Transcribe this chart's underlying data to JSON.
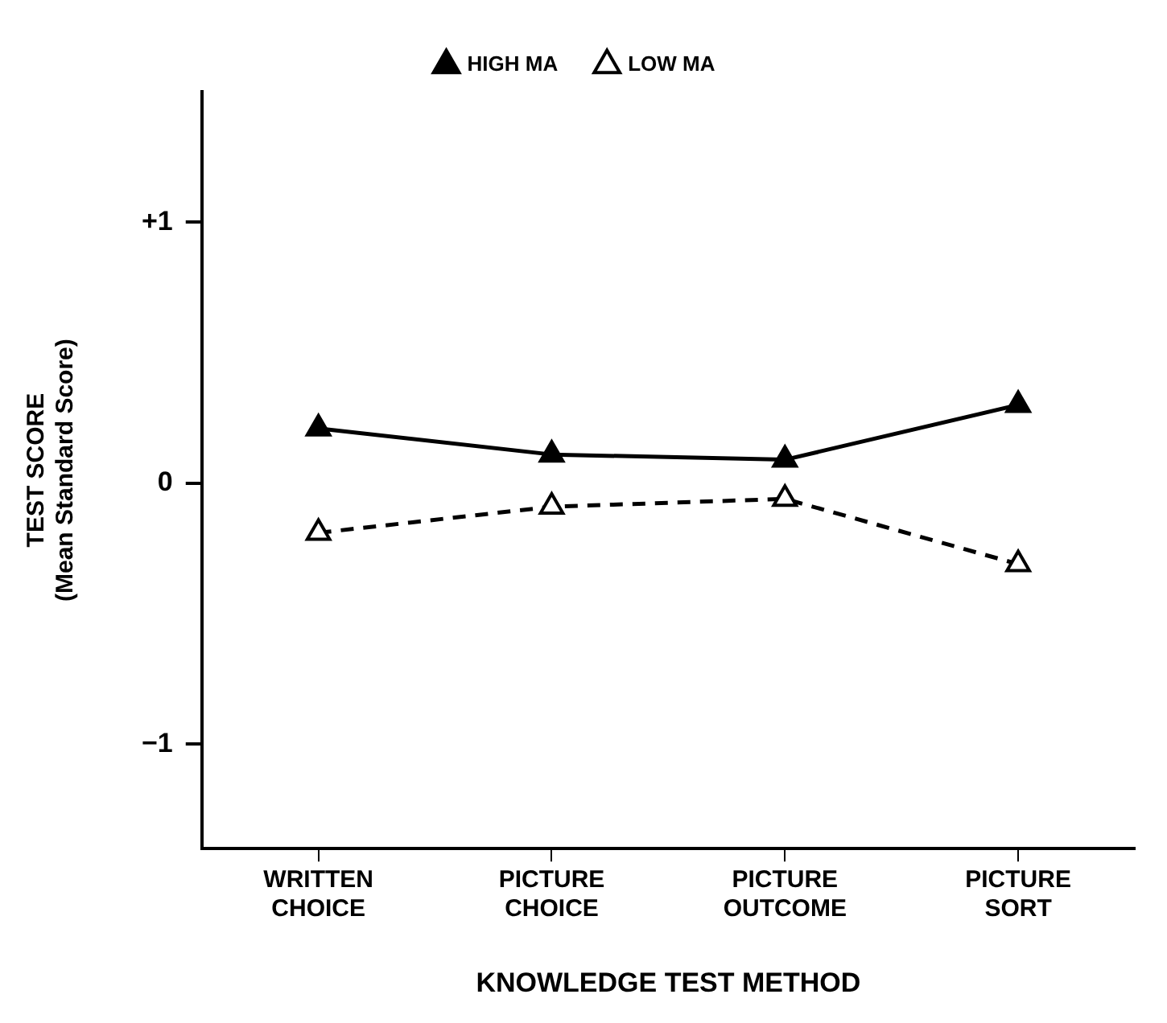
{
  "chart_data": {
    "type": "line",
    "xlabel": "KNOWLEDGE TEST METHOD",
    "ylabel": "TEST SCORE (Mean Standard Score)",
    "categories": [
      "WRITTEN CHOICE",
      "PICTURE CHOICE",
      "PICTURE OUTCOME",
      "PICTURE SORT"
    ],
    "series": [
      {
        "name": "HIGH MA",
        "color": "#000000",
        "line_style": "solid",
        "values": [
          0.21,
          0.11,
          0.09,
          0.3
        ]
      },
      {
        "name": "LOW MA",
        "color": "#000000",
        "line_style": "dashed",
        "values": [
          -0.19,
          -0.09,
          -0.06,
          -0.31
        ]
      }
    ],
    "ylim": [
      -1.4,
      1.5
    ],
    "yticks": [
      {
        "value": 1,
        "label": "+1"
      },
      0,
      {
        "value": -1,
        "label": "−1"
      }
    ],
    "grid": false,
    "legend": "top",
    "marker": "triangle"
  }
}
